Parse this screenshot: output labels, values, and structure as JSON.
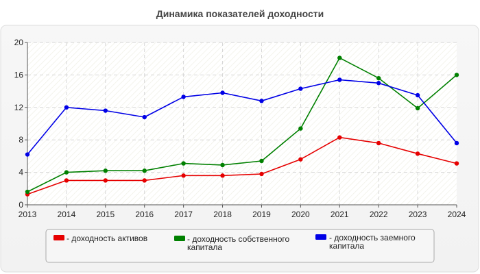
{
  "chart_data": {
    "type": "line",
    "title": "Динамика показателей доходности",
    "xlabel": "",
    "ylabel": "",
    "x": [
      "2013",
      "2014",
      "2015",
      "2016",
      "2017",
      "2018",
      "2019",
      "2020",
      "2021",
      "2022",
      "2023",
      "2024"
    ],
    "ylim": [
      0,
      20
    ],
    "yticks": [
      0,
      4,
      8,
      12,
      16,
      20
    ],
    "grid": true,
    "legend": "bottom",
    "series": [
      {
        "name": "- доходность активов",
        "color": "#e60000",
        "values": [
          1.3,
          3.0,
          3.0,
          3.0,
          3.6,
          3.6,
          3.8,
          5.6,
          8.3,
          7.6,
          6.3,
          5.1
        ]
      },
      {
        "name": "- доходность собственного капитала",
        "color": "#008000",
        "values": [
          1.6,
          4.0,
          4.2,
          4.2,
          5.1,
          4.9,
          5.4,
          9.4,
          18.1,
          15.6,
          11.9,
          16.0
        ]
      },
      {
        "name": "- доходность заемного капитала",
        "color": "#0000e6",
        "values": [
          6.2,
          12.0,
          11.6,
          10.8,
          13.3,
          13.8,
          12.8,
          14.3,
          15.4,
          15.0,
          13.5,
          7.6
        ]
      }
    ]
  }
}
